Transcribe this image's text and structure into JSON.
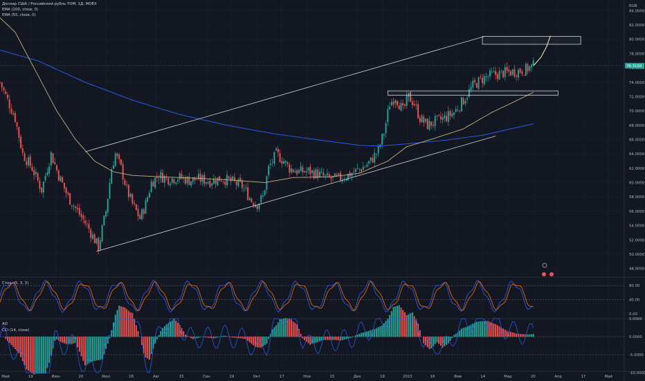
{
  "header": {
    "symbol": "Доллар США / Российский рубль TOM, 1Д, MOEX",
    "ema200": "EMA (200, close, 0)",
    "ema55": "EMA (55, close, 0)",
    "currency": "RUB"
  },
  "stoch_label": "Стох. (5, 3, 3)",
  "ao_label": "AO",
  "cci_label": "CCI (14, close)",
  "last_price": "76.3150",
  "price_axis": [
    "84.0000",
    "82.0000",
    "80.0000",
    "78.0000",
    "76.0000",
    "74.0000",
    "72.0000",
    "70.0000",
    "68.0000",
    "66.0000",
    "64.0000",
    "62.0000",
    "60.0000",
    "58.0000",
    "56.0000",
    "54.0000",
    "52.0000",
    "50.0000",
    "48.0000"
  ],
  "stoch_axis": [
    "80.00",
    "40.00",
    "0.00"
  ],
  "ao_axis": [
    "5.0000",
    "0.0000",
    "-5.0000",
    "-10.0000",
    "-15.0000"
  ],
  "time_axis": [
    "Май",
    "19",
    "Июн",
    "20",
    "Июл",
    "18",
    "Авг",
    "15",
    "Сен",
    "19",
    "Окт",
    "17",
    "Ноя",
    "15",
    "Дек",
    "19",
    "2023",
    "16",
    "Фев",
    "14",
    "Мар",
    "20",
    "Апр",
    "17",
    "Май"
  ],
  "chart_data": {
    "type": "candlestick",
    "title": "Доллар США / Российский рубль TOM, 1Д, MOEX",
    "ylabel": "RUB",
    "ylim": [
      48,
      85
    ],
    "x_range": [
      "Май",
      "Май"
    ],
    "anchors": [
      [
        0,
        74
      ],
      [
        4,
        71.5
      ],
      [
        8,
        69
      ],
      [
        12,
        64
      ],
      [
        17,
        62
      ],
      [
        22,
        59
      ],
      [
        27,
        64
      ],
      [
        31,
        61
      ],
      [
        36,
        58
      ],
      [
        41,
        56
      ],
      [
        46,
        54
      ],
      [
        50,
        52
      ],
      [
        52,
        51
      ],
      [
        56,
        56
      ],
      [
        59,
        62
      ],
      [
        61,
        64
      ],
      [
        64,
        62
      ],
      [
        67,
        59
      ],
      [
        70,
        57
      ],
      [
        74,
        55
      ],
      [
        77,
        57
      ],
      [
        80,
        60
      ],
      [
        84,
        61
      ],
      [
        89,
        60.5
      ],
      [
        95,
        60.7
      ],
      [
        100,
        60.3
      ],
      [
        105,
        60.5
      ],
      [
        111,
        60.2
      ],
      [
        117,
        60.6
      ],
      [
        123,
        60.1
      ],
      [
        128,
        59.5
      ],
      [
        133,
        57.5
      ],
      [
        136,
        57
      ],
      [
        139,
        58
      ],
      [
        142,
        62
      ],
      [
        146,
        64
      ],
      [
        150,
        63
      ],
      [
        153,
        62
      ],
      [
        158,
        61.5
      ],
      [
        163,
        61.6
      ],
      [
        168,
        61.2
      ],
      [
        173,
        60.6
      ],
      [
        178,
        60.5
      ],
      [
        183,
        60.9
      ],
      [
        188,
        61.6
      ],
      [
        193,
        62.3
      ],
      [
        196,
        63
      ],
      [
        200,
        64.5
      ],
      [
        203,
        67
      ],
      [
        206,
        71
      ],
      [
        209,
        72
      ],
      [
        213,
        70
      ],
      [
        216,
        72
      ],
      [
        219,
        71
      ],
      [
        222,
        69
      ],
      [
        226,
        68
      ],
      [
        230,
        68.5
      ],
      [
        235,
        69
      ],
      [
        240,
        69.8
      ],
      [
        245,
        71.5
      ],
      [
        250,
        73.5
      ],
      [
        255,
        74.5
      ],
      [
        260,
        75
      ],
      [
        266,
        75.3
      ],
      [
        272,
        75.5
      ],
      [
        278,
        75.8
      ],
      [
        282,
        76.3
      ]
    ],
    "series": [
      {
        "name": "EMA (200, close, 0)",
        "values": [
          [
            0,
            78.5
          ],
          [
            20,
            77
          ],
          [
            45,
            74
          ],
          [
            70,
            71.5
          ],
          [
            95,
            69.5
          ],
          [
            120,
            68
          ],
          [
            145,
            66.8
          ],
          [
            170,
            65.9
          ],
          [
            190,
            65.2
          ],
          [
            200,
            65.1
          ],
          [
            215,
            65.4
          ],
          [
            235,
            65.9
          ],
          [
            255,
            66.6
          ],
          [
            270,
            67.5
          ],
          [
            282,
            68.2
          ]
        ]
      },
      {
        "name": "EMA (55, close, 0)",
        "values": [
          [
            0,
            83
          ],
          [
            8,
            81
          ],
          [
            18,
            76
          ],
          [
            30,
            70
          ],
          [
            40,
            66
          ],
          [
            50,
            63
          ],
          [
            60,
            61.5
          ],
          [
            70,
            61
          ],
          [
            85,
            60.8
          ],
          [
            105,
            60.6
          ],
          [
            125,
            60.3
          ],
          [
            140,
            60
          ],
          [
            155,
            60.7
          ],
          [
            175,
            60.8
          ],
          [
            190,
            61.3
          ],
          [
            205,
            63
          ],
          [
            215,
            65
          ],
          [
            230,
            66.2
          ],
          [
            245,
            67.5
          ],
          [
            260,
            69.8
          ],
          [
            272,
            71.3
          ],
          [
            282,
            72.6
          ]
        ]
      }
    ],
    "projection": [
      [
        282,
        76.3
      ],
      [
        286,
        77.5
      ],
      [
        289,
        79
      ],
      [
        291,
        80.5
      ]
    ],
    "annotations": {
      "channel_upper": [
        [
          45,
          64.3
        ],
        [
          256,
          80.4
        ]
      ],
      "channel_lower": [
        [
          51,
          50.4
        ],
        [
          262,
          66.5
        ]
      ],
      "resistance_box": {
        "from": 255,
        "to": 307,
        "y": [
          79.3,
          80.4
        ]
      },
      "support_box": {
        "from": 205,
        "to": 295,
        "y": [
          72.2,
          72.8
        ]
      }
    },
    "stochastic": {
      "levels": [
        80,
        40
      ]
    },
    "ao": {
      "zero": 0
    },
    "cci_levels": [
      -5,
      -10
    ]
  }
}
